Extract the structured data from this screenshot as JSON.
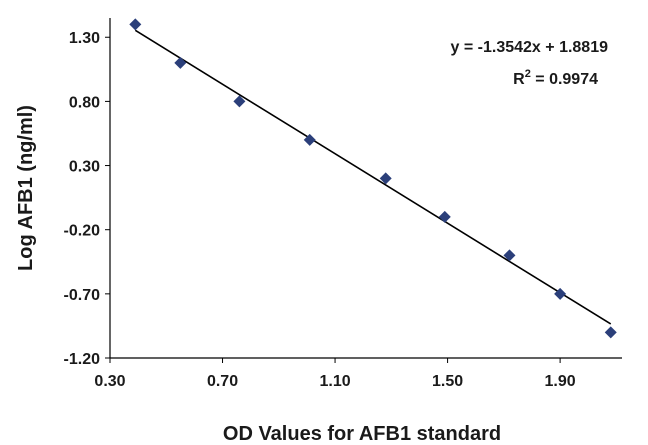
{
  "chart_data": {
    "type": "scatter",
    "title": "",
    "xlabel": "OD Values for AFB1 standard",
    "ylabel": "Log AFB1 (ng/ml)",
    "xlim": [
      0.3,
      2.12
    ],
    "ylim": [
      -1.2,
      1.45
    ],
    "x_ticks": [
      "0.30",
      "0.70",
      "1.10",
      "1.50",
      "1.90"
    ],
    "y_ticks": [
      "1.30",
      "0.80",
      "0.30",
      "-0.20",
      "-0.70",
      "-1.20"
    ],
    "grid": false,
    "legend": "none",
    "marker_color": "#2b3f7a",
    "line_color": "#000000",
    "series": [
      {
        "points": [
          {
            "x": 0.39,
            "y": 1.4
          },
          {
            "x": 0.55,
            "y": 1.1
          },
          {
            "x": 0.76,
            "y": 0.8
          },
          {
            "x": 1.01,
            "y": 0.5
          },
          {
            "x": 1.28,
            "y": 0.2
          },
          {
            "x": 1.49,
            "y": -0.1
          },
          {
            "x": 1.72,
            "y": -0.4
          },
          {
            "x": 1.9,
            "y": -0.7
          },
          {
            "x": 2.08,
            "y": -1.0
          }
        ]
      }
    ],
    "trendline": {
      "slope": -1.3542,
      "intercept": 1.8819,
      "equation_label": "y = -1.3542x + 1.8819",
      "r2_prefix": "R",
      "r2_sup": "2",
      "r2_suffix": " = 0.9974"
    }
  }
}
